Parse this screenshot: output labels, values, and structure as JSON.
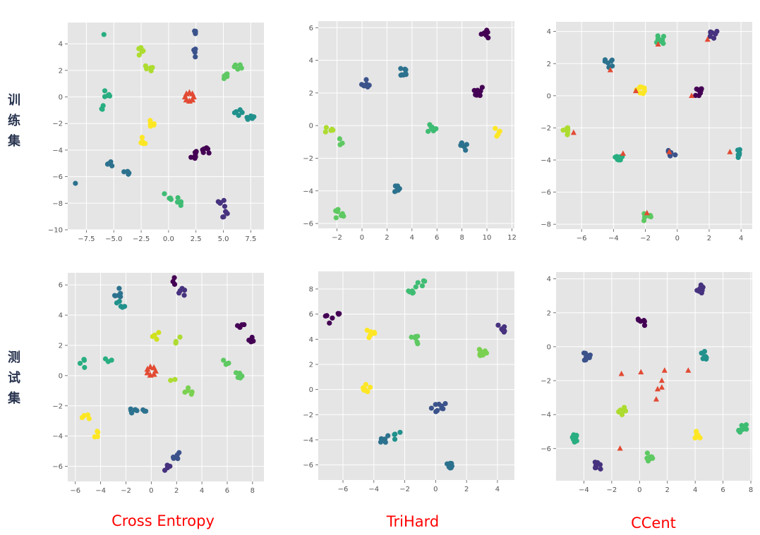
{
  "row_labels": {
    "train": "训练集",
    "test": "测试集"
  },
  "column_titles": {
    "ce": "Cross Entropy",
    "trihard": "TriHard",
    "ccent": "CCent"
  },
  "colors": {
    "background": "#e5e5e5",
    "grid": "#ffffff",
    "center_marker": "#e24a33"
  },
  "chart_data": [
    {
      "type": "scatter",
      "method": "Cross Entropy",
      "split": "训练集",
      "xlim": [
        -9.2,
        8.7
      ],
      "ylim": [
        -10,
        5.6
      ],
      "xticks": [
        -7.5,
        -5.0,
        -2.5,
        0.0,
        2.5,
        5.0,
        7.5
      ],
      "xtick_labels": [
        "−7.5",
        "−5.0",
        "−2.5",
        "0.0",
        "2.5",
        "5.0",
        "7.5"
      ],
      "yticks": [
        -10,
        -8,
        -6,
        -4,
        -2,
        0,
        2,
        4
      ],
      "ytick_labels": [
        "−10",
        "−8",
        "−6",
        "−4",
        "−2",
        "0",
        "2",
        "4"
      ],
      "grid": true,
      "center_marker": "triangle",
      "clusters": [
        {
          "color": "#440154",
          "x": 2.3,
          "y": -4.3,
          "n": 7
        },
        {
          "color": "#440154",
          "x": 3.4,
          "y": -4.0,
          "n": 6
        },
        {
          "color": "#46327e",
          "x": 4.8,
          "y": -8.0,
          "n": 5
        },
        {
          "color": "#46327e",
          "x": 5.0,
          "y": -8.8,
          "n": 5
        },
        {
          "color": "#3b528b",
          "x": 2.3,
          "y": 4.7,
          "n": 4
        },
        {
          "color": "#3b528b",
          "x": 2.5,
          "y": 3.3,
          "n": 4
        },
        {
          "color": "#2c728e",
          "x": -5.4,
          "y": -5.2,
          "n": 4
        },
        {
          "color": "#2c728e",
          "x": -3.7,
          "y": -5.6,
          "n": 4
        },
        {
          "color": "#2c728e",
          "x": -8.5,
          "y": -6.5,
          "n": 1
        },
        {
          "color": "#21918c",
          "x": 6.4,
          "y": -1.1,
          "n": 5
        },
        {
          "color": "#21918c",
          "x": 7.4,
          "y": -1.5,
          "n": 5
        },
        {
          "color": "#28ae80",
          "x": -5.5,
          "y": 0.3,
          "n": 5
        },
        {
          "color": "#28ae80",
          "x": -5.9,
          "y": -0.7,
          "n": 3
        },
        {
          "color": "#28ae80",
          "x": -5.9,
          "y": 4.7,
          "n": 1
        },
        {
          "color": "#3fbc73",
          "x": 0.0,
          "y": -7.4,
          "n": 4
        },
        {
          "color": "#3fbc73",
          "x": 1.0,
          "y": -7.9,
          "n": 5
        },
        {
          "color": "#5ec962",
          "x": 5.2,
          "y": 1.5,
          "n": 5
        },
        {
          "color": "#5ec962",
          "x": 6.3,
          "y": 2.3,
          "n": 5
        },
        {
          "color": "#addc30",
          "x": -2.4,
          "y": 3.4,
          "n": 5
        },
        {
          "color": "#addc30",
          "x": -1.8,
          "y": 2.1,
          "n": 5
        },
        {
          "color": "#fde725",
          "x": -2.2,
          "y": -3.2,
          "n": 5
        },
        {
          "color": "#fde725",
          "x": -1.5,
          "y": -2.0,
          "n": 5
        }
      ],
      "centers": [
        {
          "x": 1.9,
          "y": 0.0,
          "n": 8
        }
      ]
    },
    {
      "type": "scatter",
      "method": "TriHard",
      "split": "训练集",
      "xlim": [
        -3.5,
        12.2
      ],
      "ylim": [
        -6.3,
        6.4
      ],
      "xticks": [
        -2,
        0,
        2,
        4,
        6,
        8,
        10,
        12
      ],
      "xtick_labels": [
        "−2",
        "0",
        "2",
        "4",
        "6",
        "8",
        "10",
        "12"
      ],
      "yticks": [
        -6,
        -4,
        -2,
        0,
        2,
        4,
        6
      ],
      "ytick_labels": [
        "−6",
        "−4",
        "−2",
        "0",
        "2",
        "4",
        "6"
      ],
      "grid": true,
      "clusters": [
        {
          "color": "#440154",
          "x": 9.8,
          "y": 5.6,
          "n": 10
        },
        {
          "color": "#440154",
          "x": 9.3,
          "y": 2.1,
          "n": 9
        },
        {
          "color": "#3b528b",
          "x": 0.3,
          "y": 2.6,
          "n": 7
        },
        {
          "color": "#2c728e",
          "x": 3.3,
          "y": 3.3,
          "n": 8
        },
        {
          "color": "#2c728e",
          "x": 8.2,
          "y": -1.3,
          "n": 7
        },
        {
          "color": "#2c728e",
          "x": 2.8,
          "y": -3.9,
          "n": 8
        },
        {
          "color": "#3fbc73",
          "x": 5.6,
          "y": -0.1,
          "n": 8
        },
        {
          "color": "#5ec962",
          "x": -1.8,
          "y": -5.4,
          "n": 8
        },
        {
          "color": "#5ec962",
          "x": -1.9,
          "y": -1.0,
          "n": 3
        },
        {
          "color": "#addc30",
          "x": -2.6,
          "y": -0.3,
          "n": 5
        },
        {
          "color": "#fde725",
          "x": 10.7,
          "y": -0.4,
          "n": 5
        }
      ],
      "centers": []
    },
    {
      "type": "scatter",
      "method": "CCent",
      "split": "训练集",
      "xlim": [
        -7.6,
        4.7
      ],
      "ylim": [
        -8.3,
        4.6
      ],
      "xticks": [
        -6,
        -4,
        -2,
        0,
        2,
        4
      ],
      "xtick_labels": [
        "−6",
        "−4",
        "−2",
        "0",
        "2",
        "4"
      ],
      "yticks": [
        -8,
        -6,
        -4,
        -2,
        0,
        2,
        4
      ],
      "ytick_labels": [
        "−8",
        "−6",
        "−4",
        "−2",
        "0",
        "2",
        "4"
      ],
      "grid": true,
      "center_marker": "triangle",
      "clusters": [
        {
          "color": "#440154",
          "x": 1.4,
          "y": 0.2,
          "n": 8
        },
        {
          "color": "#46327e",
          "x": 2.3,
          "y": 3.8,
          "n": 7
        },
        {
          "color": "#3b528b",
          "x": -0.3,
          "y": -3.6,
          "n": 7
        },
        {
          "color": "#2c728e",
          "x": -4.3,
          "y": 2.0,
          "n": 7
        },
        {
          "color": "#21918c",
          "x": 3.9,
          "y": -3.6,
          "n": 6
        },
        {
          "color": "#28ae80",
          "x": -3.7,
          "y": -3.8,
          "n": 8
        },
        {
          "color": "#3fbc73",
          "x": -1.1,
          "y": 3.5,
          "n": 8
        },
        {
          "color": "#5ec962",
          "x": -1.9,
          "y": -7.6,
          "n": 6
        },
        {
          "color": "#addc30",
          "x": -7.0,
          "y": -2.2,
          "n": 7
        },
        {
          "color": "#fde725",
          "x": -2.3,
          "y": 0.3,
          "n": 8
        }
      ],
      "centers": [
        {
          "x": 1.9,
          "y": 3.5
        },
        {
          "x": -4.2,
          "y": 1.6
        },
        {
          "x": -1.2,
          "y": 3.2
        },
        {
          "x": -2.6,
          "y": 0.3
        },
        {
          "x": 0.9,
          "y": 0.0
        },
        {
          "x": -6.5,
          "y": -2.3
        },
        {
          "x": -3.4,
          "y": -3.6
        },
        {
          "x": -0.5,
          "y": -3.5
        },
        {
          "x": 3.3,
          "y": -3.5
        },
        {
          "x": -1.9,
          "y": -7.3
        }
      ]
    },
    {
      "type": "scatter",
      "method": "Cross Entropy",
      "split": "测试集",
      "xlim": [
        -6.6,
        8.9
      ],
      "ylim": [
        -7.0,
        6.8
      ],
      "xticks": [
        -6,
        -4,
        -2,
        0,
        2,
        4,
        6,
        8
      ],
      "xtick_labels": [
        "−6",
        "−4",
        "−2",
        "0",
        "2",
        "4",
        "6",
        "8"
      ],
      "yticks": [
        -6,
        -4,
        -2,
        0,
        2,
        4,
        6
      ],
      "ytick_labels": [
        "−6",
        "−4",
        "−2",
        "0",
        "2",
        "4",
        "6"
      ],
      "grid": true,
      "center_marker": "triangle",
      "clusters": [
        {
          "color": "#440154",
          "x": 1.8,
          "y": 6.2,
          "n": 3
        },
        {
          "color": "#440154",
          "x": 7.1,
          "y": 3.1,
          "n": 4
        },
        {
          "color": "#440154",
          "x": 8.0,
          "y": 2.5,
          "n": 5
        },
        {
          "color": "#46327e",
          "x": 1.2,
          "y": -6.1,
          "n": 4
        },
        {
          "color": "#46327e",
          "x": 2.4,
          "y": 5.5,
          "n": 5
        },
        {
          "color": "#3b528b",
          "x": 2.0,
          "y": -5.3,
          "n": 5
        },
        {
          "color": "#2c728e",
          "x": -2.7,
          "y": 5.5,
          "n": 6
        },
        {
          "color": "#2c728e",
          "x": -1.4,
          "y": -2.4,
          "n": 6
        },
        {
          "color": "#2c728e",
          "x": -0.5,
          "y": -2.4,
          "n": 3
        },
        {
          "color": "#21918c",
          "x": -2.4,
          "y": 4.7,
          "n": 5
        },
        {
          "color": "#28ae80",
          "x": -3.4,
          "y": 1.2,
          "n": 3
        },
        {
          "color": "#28ae80",
          "x": -5.6,
          "y": 0.8,
          "n": 4
        },
        {
          "color": "#5ec962",
          "x": 5.8,
          "y": 0.9,
          "n": 5
        },
        {
          "color": "#5ec962",
          "x": 6.9,
          "y": 0.1,
          "n": 5
        },
        {
          "color": "#7ad151",
          "x": 2.9,
          "y": -1.0,
          "n": 5
        },
        {
          "color": "#addc30",
          "x": 2.1,
          "y": 2.3,
          "n": 3
        },
        {
          "color": "#addc30",
          "x": 1.8,
          "y": -0.3,
          "n": 2
        },
        {
          "color": "#d0e11c",
          "x": 0.3,
          "y": 2.6,
          "n": 4
        },
        {
          "color": "#fde725",
          "x": -5.2,
          "y": -2.7,
          "n": 5
        },
        {
          "color": "#fde725",
          "x": -4.5,
          "y": -3.9,
          "n": 4
        }
      ],
      "centers": [
        {
          "x": 0.0,
          "y": 0.3,
          "n": 7
        }
      ]
    },
    {
      "type": "scatter",
      "method": "TriHard",
      "split": "测试集",
      "xlim": [
        -7.6,
        5.1
      ],
      "ylim": [
        -7.2,
        9.4
      ],
      "xticks": [
        -6,
        -4,
        -2,
        0,
        2,
        4
      ],
      "xtick_labels": [
        "−6",
        "−4",
        "−2",
        "0",
        "2",
        "4"
      ],
      "yticks": [
        -6,
        -4,
        -2,
        0,
        2,
        4,
        6,
        8
      ],
      "ytick_labels": [
        "−6",
        "−4",
        "−2",
        "0",
        "2",
        "4",
        "6",
        "8"
      ],
      "grid": true,
      "clusters": [
        {
          "color": "#440154",
          "x": -6.9,
          "y": 5.6,
          "n": 4
        },
        {
          "color": "#440154",
          "x": -6.4,
          "y": 5.9,
          "n": 3
        },
        {
          "color": "#46327e",
          "x": 4.2,
          "y": 4.8,
          "n": 8
        },
        {
          "color": "#3b528b",
          "x": 0.0,
          "y": -1.5,
          "n": 5
        },
        {
          "color": "#3b528b",
          "x": 0.6,
          "y": -1.3,
          "n": 4
        },
        {
          "color": "#2c728e",
          "x": 1.0,
          "y": -6.1,
          "n": 9
        },
        {
          "color": "#2c728e",
          "x": -3.3,
          "y": -3.9,
          "n": 6
        },
        {
          "color": "#21918c",
          "x": -2.4,
          "y": -3.7,
          "n": 4
        },
        {
          "color": "#3fbc73",
          "x": -1.5,
          "y": 7.9,
          "n": 6
        },
        {
          "color": "#3fbc73",
          "x": -0.9,
          "y": 8.4,
          "n": 4
        },
        {
          "color": "#5ec962",
          "x": -1.3,
          "y": 3.9,
          "n": 7
        },
        {
          "color": "#7ad151",
          "x": 3.1,
          "y": 2.9,
          "n": 8
        },
        {
          "color": "#fde725",
          "x": -4.2,
          "y": 4.4,
          "n": 8
        },
        {
          "color": "#fde725",
          "x": -4.5,
          "y": 0.1,
          "n": 9
        }
      ],
      "centers": []
    },
    {
      "type": "scatter",
      "method": "CCent",
      "split": "测试集",
      "xlim": [
        -6.0,
        8.1
      ],
      "ylim": [
        -7.9,
        4.4
      ],
      "xticks": [
        -4,
        -2,
        0,
        2,
        4,
        6,
        8
      ],
      "xtick_labels": [
        "−4",
        "−2",
        "0",
        "2",
        "4",
        "6",
        "8"
      ],
      "yticks": [
        -6,
        -4,
        -2,
        0,
        2,
        4
      ],
      "ytick_labels": [
        "−6",
        "−4",
        "−2",
        "0",
        "2",
        "4"
      ],
      "grid": true,
      "center_marker": "triangle",
      "clusters": [
        {
          "color": "#440154",
          "x": 0.1,
          "y": 1.4,
          "n": 6
        },
        {
          "color": "#46327e",
          "x": 4.3,
          "y": 3.4,
          "n": 8
        },
        {
          "color": "#46327e",
          "x": -2.9,
          "y": -7.0,
          "n": 8
        },
        {
          "color": "#3b528b",
          "x": -3.7,
          "y": -0.6,
          "n": 8
        },
        {
          "color": "#21918c",
          "x": 4.5,
          "y": -0.5,
          "n": 8
        },
        {
          "color": "#28ae80",
          "x": -4.8,
          "y": -5.4,
          "n": 9
        },
        {
          "color": "#3fbc73",
          "x": 7.4,
          "y": -4.8,
          "n": 9
        },
        {
          "color": "#5ec962",
          "x": 0.8,
          "y": -6.5,
          "n": 8
        },
        {
          "color": "#addc30",
          "x": -1.2,
          "y": -3.8,
          "n": 8
        },
        {
          "color": "#fde725",
          "x": 4.1,
          "y": -5.2,
          "n": 8
        }
      ],
      "centers": [
        {
          "x": -1.3,
          "y": -1.6
        },
        {
          "x": 0.1,
          "y": -1.5
        },
        {
          "x": 1.8,
          "y": -1.4
        },
        {
          "x": 1.3,
          "y": -2.5
        },
        {
          "x": 1.6,
          "y": -2.4
        },
        {
          "x": 1.6,
          "y": -2.0
        },
        {
          "x": 1.2,
          "y": -3.1
        },
        {
          "x": 3.5,
          "y": -1.4
        },
        {
          "x": -1.4,
          "y": -6.0
        }
      ]
    }
  ]
}
